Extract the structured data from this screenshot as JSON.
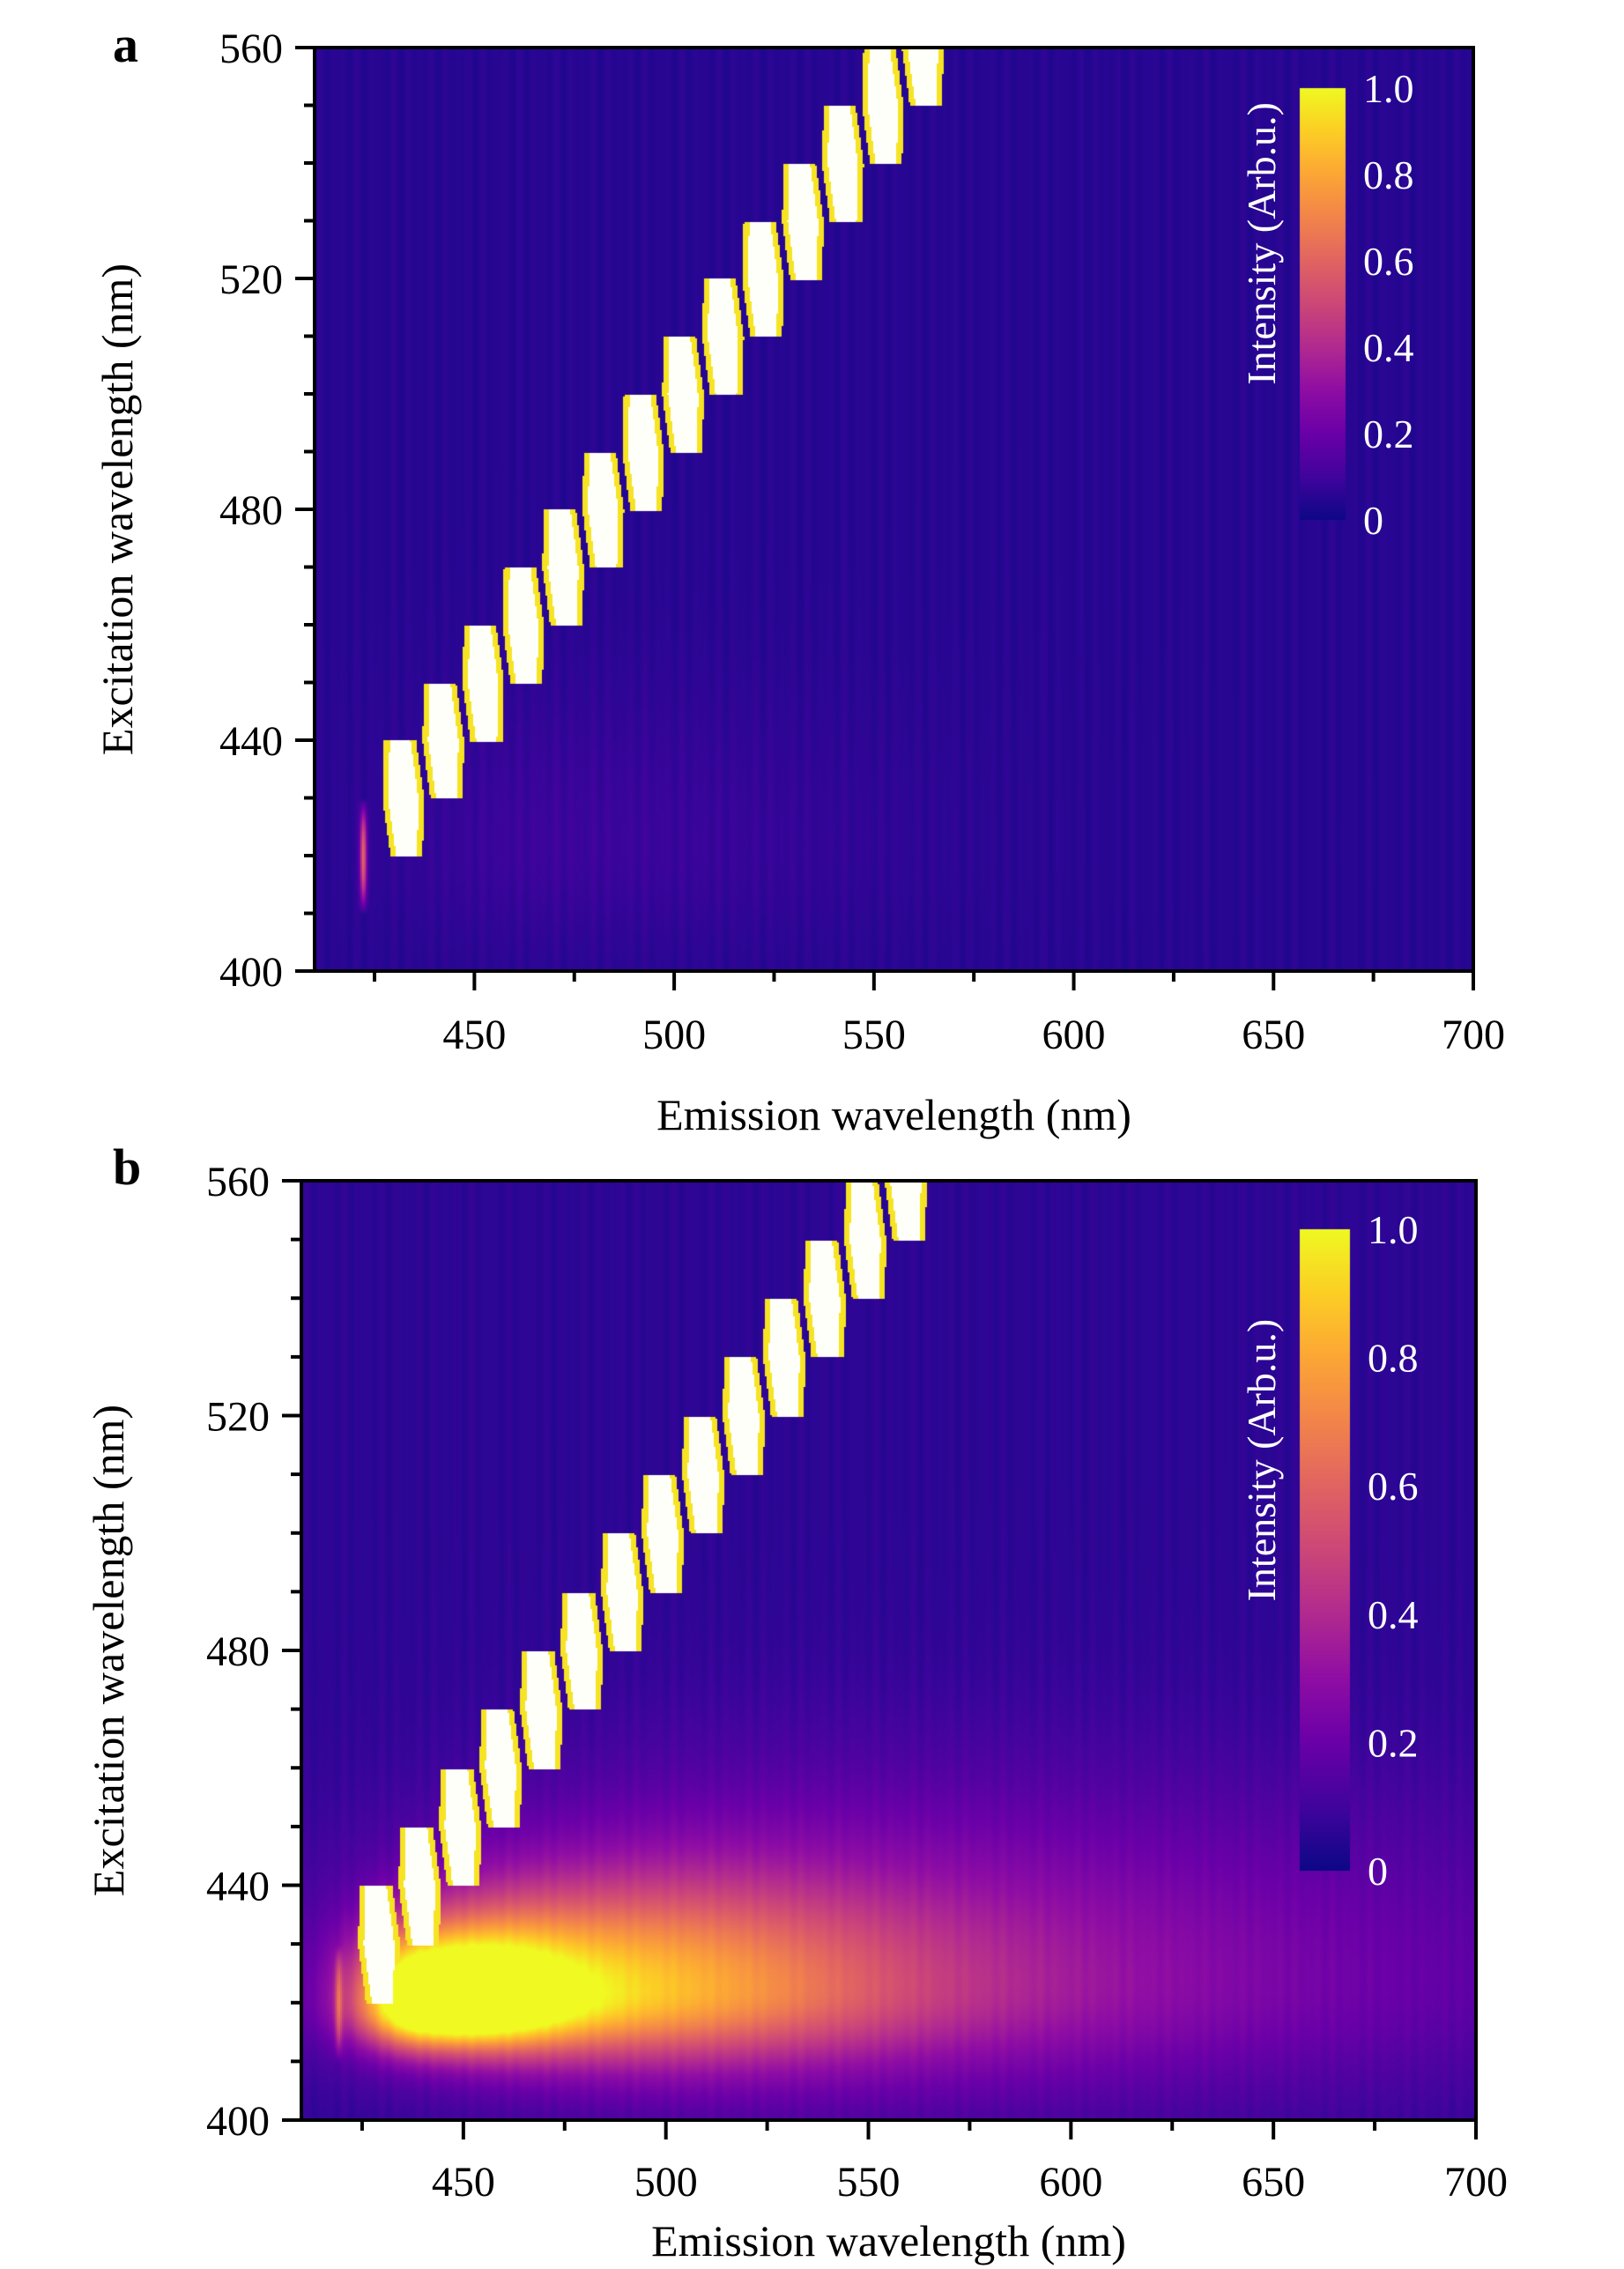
{
  "figure": {
    "panels": [
      "a",
      "b"
    ]
  },
  "chart_data": [
    {
      "panel_label": "a",
      "type": "heatmap",
      "title": "",
      "xlabel": "Emission wavelength (nm)",
      "ylabel": "Excitation wavelength (nm)",
      "xlim": [
        410,
        700
      ],
      "ylim": [
        400,
        560
      ],
      "x_ticks": [
        450,
        500,
        550,
        600,
        650,
        700
      ],
      "x_minor_step": 25,
      "y_ticks": [
        400,
        440,
        480,
        520,
        560
      ],
      "y_minor_step": 10,
      "grid": false,
      "colormap": "plasma",
      "colorbar": {
        "title": "Intensity (Arb.u.)",
        "range": [
          0,
          1
        ],
        "ticks": [
          "0",
          "0.2",
          "0.4",
          "0.6",
          "0.8",
          "1.0"
        ],
        "placement": "top-right inside"
      },
      "background_level": 0.05,
      "scatter_bands": [
        {
          "emission": 432,
          "excitation_range": [
            420,
            440
          ]
        },
        {
          "emission": 442,
          "excitation_range": [
            430,
            450
          ]
        },
        {
          "emission": 452,
          "excitation_range": [
            440,
            460
          ]
        },
        {
          "emission": 462,
          "excitation_range": [
            450,
            470
          ]
        },
        {
          "emission": 472,
          "excitation_range": [
            460,
            480
          ]
        },
        {
          "emission": 482,
          "excitation_range": [
            470,
            490
          ]
        },
        {
          "emission": 492,
          "excitation_range": [
            480,
            500
          ]
        },
        {
          "emission": 502,
          "excitation_range": [
            490,
            510
          ]
        },
        {
          "emission": 512,
          "excitation_range": [
            500,
            520
          ]
        },
        {
          "emission": 522,
          "excitation_range": [
            510,
            530
          ]
        },
        {
          "emission": 532,
          "excitation_range": [
            520,
            540
          ]
        },
        {
          "emission": 542,
          "excitation_range": [
            530,
            550
          ]
        },
        {
          "emission": 552,
          "excitation_range": [
            540,
            560
          ]
        },
        {
          "emission": 562,
          "excitation_range": [
            550,
            570
          ]
        }
      ],
      "weak_features": [
        {
          "emission": 422,
          "excitation_range": [
            410,
            430
          ],
          "intensity": 0.55
        }
      ],
      "fluorescence_peaks": [
        {
          "emission": 470,
          "excitation": 422,
          "intensity": 0.04,
          "em_width": 60,
          "ex_width": 12
        }
      ]
    },
    {
      "panel_label": "b",
      "type": "heatmap",
      "title": "",
      "xlabel": "Emission wavelength (nm)",
      "ylabel": "Excitation wavelength (nm)",
      "xlim": [
        410,
        700
      ],
      "ylim": [
        400,
        560
      ],
      "x_ticks": [
        450,
        500,
        550,
        600,
        650,
        700
      ],
      "x_minor_step": 25,
      "y_ticks": [
        400,
        440,
        480,
        520,
        560
      ],
      "y_minor_step": 10,
      "grid": false,
      "colormap": "plasma",
      "colorbar": {
        "title": "Intensity (Arb.u.)",
        "range": [
          0,
          1
        ],
        "ticks": [
          "0",
          "0.2",
          "0.4",
          "0.6",
          "0.8",
          "1.0"
        ],
        "placement": "top-right inside"
      },
      "background_level": 0.06,
      "scatter_bands": [
        {
          "emission": 429,
          "excitation_range": [
            420,
            440
          ]
        },
        {
          "emission": 439,
          "excitation_range": [
            430,
            450
          ]
        },
        {
          "emission": 449,
          "excitation_range": [
            440,
            460
          ]
        },
        {
          "emission": 459,
          "excitation_range": [
            450,
            470
          ]
        },
        {
          "emission": 469,
          "excitation_range": [
            460,
            480
          ]
        },
        {
          "emission": 479,
          "excitation_range": [
            470,
            490
          ]
        },
        {
          "emission": 489,
          "excitation_range": [
            480,
            500
          ]
        },
        {
          "emission": 499,
          "excitation_range": [
            490,
            510
          ]
        },
        {
          "emission": 509,
          "excitation_range": [
            500,
            520
          ]
        },
        {
          "emission": 519,
          "excitation_range": [
            510,
            530
          ]
        },
        {
          "emission": 529,
          "excitation_range": [
            520,
            540
          ]
        },
        {
          "emission": 539,
          "excitation_range": [
            530,
            550
          ]
        },
        {
          "emission": 549,
          "excitation_range": [
            540,
            560
          ]
        },
        {
          "emission": 559,
          "excitation_range": [
            550,
            570
          ]
        }
      ],
      "weak_features": [
        {
          "emission": 419,
          "excitation_range": [
            410,
            430
          ],
          "intensity": 0.3
        }
      ],
      "fluorescence_peaks": [
        {
          "emission": 440,
          "excitation": 420,
          "intensity": 1.0,
          "em_width": 22,
          "ex_width": 5
        },
        {
          "emission": 470,
          "excitation": 422,
          "intensity": 0.62,
          "em_width": 55,
          "ex_width": 8
        },
        {
          "emission": 530,
          "excitation": 424,
          "intensity": 0.3,
          "em_width": 120,
          "ex_width": 14
        }
      ]
    }
  ]
}
